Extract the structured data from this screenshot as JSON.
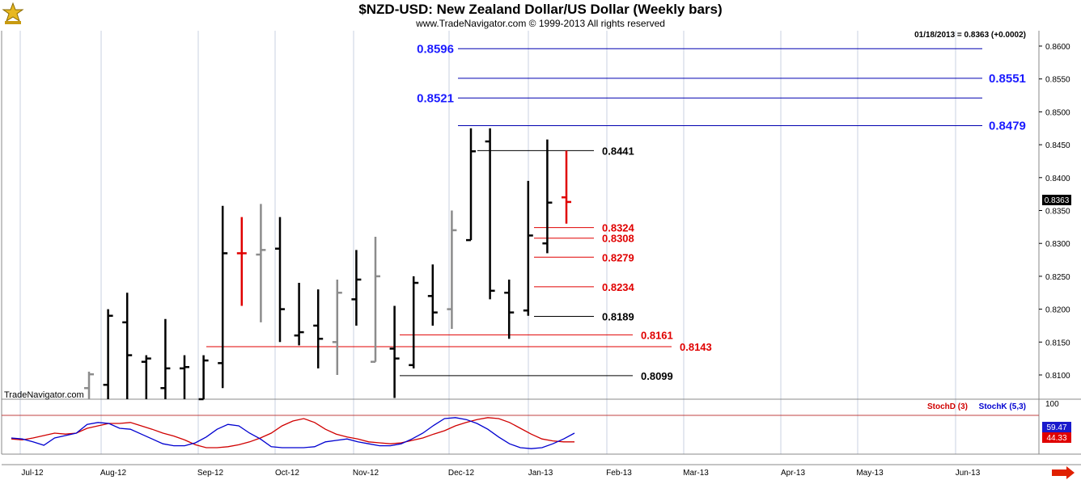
{
  "header": {
    "title": "$NZD-USD:  New Zealand Dollar/US Dollar  (Weekly bars)",
    "subtitle": "www.TradeNavigator.com © 1999-2013 All rights reserved"
  },
  "watermark": "TradeNavigator.com",
  "logo_icon": "trading-logo-icon",
  "scroll_arrow_icon": "right-arrow-icon",
  "quote_readout": "01/18/2013 = 0.8363 (+0.0002)",
  "last_price_label": "0.8363",
  "colors": {
    "up_black": "#000000",
    "gray": "#8c8c8c",
    "red": "#e00000",
    "blue_level": "#0000b0",
    "blue_label": "#1a1aff",
    "stochD": "#d00000",
    "stochK": "#0000d0"
  },
  "chart_data": {
    "type": "ohlc",
    "frequency": "weekly",
    "ylim": [
      0.806,
      0.8605
    ],
    "y_ticks": [
      "0.8600",
      "0.8550",
      "0.8500",
      "0.8450",
      "0.8400",
      "0.8350",
      "0.8300",
      "0.8250",
      "0.8200",
      "0.8150",
      "0.8100"
    ],
    "x_ticks": [
      "Jul-12",
      "Aug-12",
      "Sep-12",
      "Oct-12",
      "Nov-12",
      "Dec-12",
      "Jan-13",
      "Feb-13",
      "Mar-13",
      "Apr-13",
      "May-13",
      "Jun-13"
    ],
    "bars": [
      {
        "i": 0,
        "o": 0.808,
        "h": 0.8105,
        "l": 0.806,
        "c": 0.8101,
        "color": "gray"
      },
      {
        "i": 1,
        "o": 0.8085,
        "h": 0.82,
        "l": 0.806,
        "c": 0.819,
        "color": "black"
      },
      {
        "i": 2,
        "o": 0.818,
        "h": 0.8225,
        "l": 0.806,
        "c": 0.813,
        "color": "black"
      },
      {
        "i": 3,
        "o": 0.812,
        "h": 0.813,
        "l": 0.806,
        "c": 0.8125,
        "color": "black"
      },
      {
        "i": 4,
        "o": 0.808,
        "h": 0.8185,
        "l": 0.806,
        "c": 0.811,
        "color": "black"
      },
      {
        "i": 5,
        "o": 0.811,
        "h": 0.813,
        "l": 0.806,
        "c": 0.8112,
        "color": "black"
      },
      {
        "i": 6,
        "o": 0.806,
        "h": 0.813,
        "l": 0.806,
        "c": 0.8122,
        "color": "black"
      },
      {
        "i": 7,
        "o": 0.8118,
        "h": 0.8357,
        "l": 0.808,
        "c": 0.8285,
        "color": "black"
      },
      {
        "i": 8,
        "o": 0.8285,
        "h": 0.834,
        "l": 0.8205,
        "c": 0.8285,
        "color": "red"
      },
      {
        "i": 9,
        "o": 0.8283,
        "h": 0.836,
        "l": 0.818,
        "c": 0.829,
        "color": "gray"
      },
      {
        "i": 10,
        "o": 0.8292,
        "h": 0.834,
        "l": 0.815,
        "c": 0.82,
        "color": "black"
      },
      {
        "i": 11,
        "o": 0.816,
        "h": 0.824,
        "l": 0.8145,
        "c": 0.8165,
        "color": "black"
      },
      {
        "i": 12,
        "o": 0.8175,
        "h": 0.823,
        "l": 0.811,
        "c": 0.8155,
        "color": "black"
      },
      {
        "i": 13,
        "o": 0.815,
        "h": 0.8245,
        "l": 0.81,
        "c": 0.8225,
        "color": "gray"
      },
      {
        "i": 14,
        "o": 0.8215,
        "h": 0.829,
        "l": 0.8175,
        "c": 0.8245,
        "color": "black"
      },
      {
        "i": 15,
        "o": 0.812,
        "h": 0.831,
        "l": 0.812,
        "c": 0.825,
        "color": "gray"
      },
      {
        "i": 16,
        "o": 0.814,
        "h": 0.8205,
        "l": 0.8065,
        "c": 0.8125,
        "color": "black"
      },
      {
        "i": 17,
        "o": 0.8115,
        "h": 0.825,
        "l": 0.811,
        "c": 0.824,
        "color": "black"
      },
      {
        "i": 18,
        "o": 0.822,
        "h": 0.8268,
        "l": 0.8175,
        "c": 0.8195,
        "color": "black"
      },
      {
        "i": 19,
        "o": 0.82,
        "h": 0.835,
        "l": 0.817,
        "c": 0.832,
        "color": "gray"
      },
      {
        "i": 20,
        "o": 0.8305,
        "h": 0.8475,
        "l": 0.8305,
        "c": 0.844,
        "color": "black"
      },
      {
        "i": 21,
        "o": 0.8455,
        "h": 0.8475,
        "l": 0.8215,
        "c": 0.8228,
        "color": "black"
      },
      {
        "i": 22,
        "o": 0.8225,
        "h": 0.8245,
        "l": 0.8155,
        "c": 0.8195,
        "color": "black"
      },
      {
        "i": 23,
        "o": 0.8198,
        "h": 0.8395,
        "l": 0.819,
        "c": 0.8312,
        "color": "black"
      },
      {
        "i": 24,
        "o": 0.83,
        "h": 0.8458,
        "l": 0.8285,
        "c": 0.8362,
        "color": "black"
      },
      {
        "i": 25,
        "o": 0.837,
        "h": 0.8441,
        "l": 0.833,
        "c": 0.8363,
        "color": "red"
      }
    ],
    "levels": [
      {
        "value": 0.8596,
        "label": "0.8596",
        "color": "blue"
      },
      {
        "value": 0.8551,
        "label": "0.8551",
        "color": "blue"
      },
      {
        "value": 0.8521,
        "label": "0.8521",
        "color": "blue"
      },
      {
        "value": 0.8479,
        "label": "0.8479",
        "color": "blue"
      },
      {
        "value": 0.8441,
        "label": "0.8441",
        "color": "black"
      },
      {
        "value": 0.8324,
        "label": "0.8324",
        "color": "red"
      },
      {
        "value": 0.8308,
        "label": "0.8308",
        "color": "red"
      },
      {
        "value": 0.8279,
        "label": "0.8279",
        "color": "red"
      },
      {
        "value": 0.8234,
        "label": "0.8234",
        "color": "red"
      },
      {
        "value": 0.8189,
        "label": "0.8189",
        "color": "black"
      },
      {
        "value": 0.8161,
        "label": "0.8161",
        "color": "red"
      },
      {
        "value": 0.8143,
        "label": "0.8143",
        "color": "red"
      },
      {
        "value": 0.8099,
        "label": "0.8099",
        "color": "black"
      }
    ],
    "stochastic": {
      "ylim": [
        0,
        100
      ],
      "upper_label": "100",
      "legend": [
        "StochD (3)",
        "StochK (5,3)"
      ],
      "stochD_last": "44.33",
      "stochK_last": "59.47",
      "stochD": [
        28,
        26,
        30,
        35,
        40,
        38,
        40,
        50,
        55,
        60,
        60,
        62,
        55,
        48,
        40,
        34,
        26,
        16,
        10,
        10,
        12,
        16,
        22,
        30,
        40,
        55,
        65,
        70,
        62,
        48,
        38,
        32,
        28,
        22,
        20,
        18,
        20,
        25,
        30,
        38,
        45,
        55,
        62,
        68,
        72,
        70,
        62,
        50,
        38,
        28,
        24,
        22,
        22
      ],
      "stochK": [
        30,
        28,
        22,
        15,
        30,
        35,
        40,
        58,
        62,
        60,
        50,
        48,
        38,
        28,
        18,
        14,
        14,
        20,
        32,
        48,
        58,
        55,
        40,
        28,
        12,
        10,
        10,
        10,
        12,
        22,
        25,
        28,
        22,
        18,
        14,
        14,
        18,
        28,
        40,
        56,
        70,
        72,
        68,
        60,
        48,
        32,
        18,
        10,
        8,
        10,
        18,
        28,
        40
      ]
    }
  }
}
